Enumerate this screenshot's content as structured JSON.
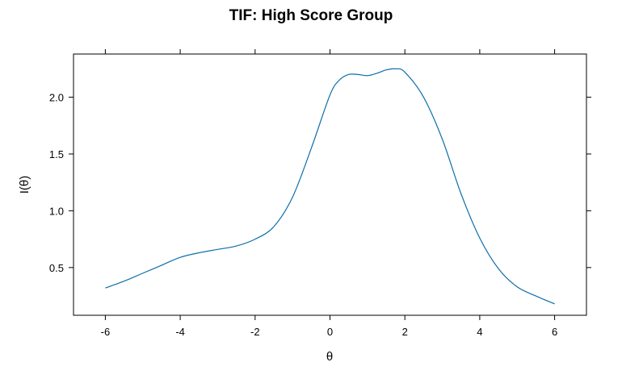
{
  "chart_data": {
    "type": "line",
    "title": "TIF: High Score Group",
    "xlabel": "θ",
    "ylabel": "I(θ)",
    "xlim": [
      -6.85,
      6.85
    ],
    "ylim": [
      0.08,
      2.38
    ],
    "xticks": [
      -6,
      -4,
      -2,
      0,
      2,
      4,
      6
    ],
    "xtick_labels": [
      "-6",
      "-4",
      "-2",
      "0",
      "2",
      "4",
      "6"
    ],
    "yticks": [
      0.5,
      1.0,
      1.5,
      2.0
    ],
    "ytick_labels": [
      "0.5",
      "1.0",
      "1.5",
      "2.0"
    ],
    "grid": false,
    "series": [
      {
        "color": "#0e6fa8",
        "x": [
          -6,
          -5.5,
          -5,
          -4.5,
          -4,
          -3.5,
          -3,
          -2.5,
          -2,
          -1.5,
          -1,
          -0.5,
          0,
          0.25,
          0.5,
          0.75,
          1,
          1.25,
          1.5,
          1.75,
          2,
          2.5,
          3,
          3.5,
          4,
          4.5,
          5,
          5.5,
          6
        ],
        "y": [
          0.32,
          0.38,
          0.45,
          0.52,
          0.59,
          0.63,
          0.66,
          0.69,
          0.75,
          0.86,
          1.12,
          1.55,
          2.02,
          2.15,
          2.2,
          2.2,
          2.19,
          2.21,
          2.24,
          2.25,
          2.22,
          2.0,
          1.63,
          1.15,
          0.76,
          0.49,
          0.33,
          0.25,
          0.18
        ]
      }
    ]
  }
}
